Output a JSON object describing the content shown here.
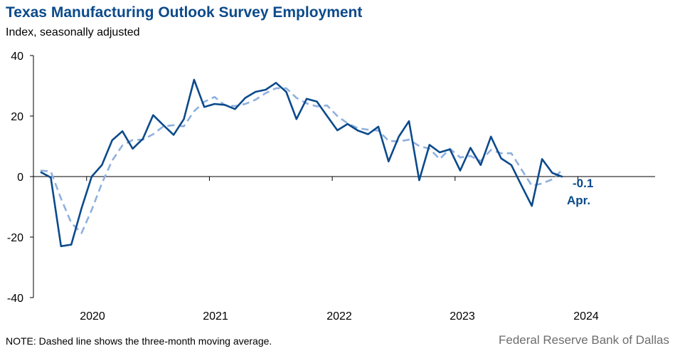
{
  "title": "Texas Manufacturing Outlook Survey Employment",
  "subtitle": "Index, seasonally adjusted",
  "note": "NOTE: Dashed line shows the three-month  moving average.",
  "source": "Federal Reserve Bank of Dallas",
  "colors": {
    "series": "#0b4a8b",
    "moving_average": "#8fb0de",
    "axis": "#000000"
  },
  "chart_data": {
    "type": "line",
    "ylim": [
      -40,
      40
    ],
    "yticks": [
      40,
      20,
      0,
      -20,
      -40
    ],
    "ytick_labels": [
      "40",
      "20",
      "0",
      "-20",
      "-40"
    ],
    "xtick_labels": [
      "2020",
      "2021",
      "2022",
      "2023",
      "2024"
    ],
    "grid": false,
    "start_month": "2019-08",
    "annotations": {
      "value": "-0.1",
      "month": "Apr."
    },
    "series": [
      {
        "style": "solid",
        "values": [
          1.5,
          -0.3,
          -23.0,
          -22.5,
          -10.5,
          0.0,
          3.8,
          12.0,
          15.0,
          9.2,
          12.5,
          20.3,
          17.0,
          13.8,
          19.0,
          32.0,
          23.0,
          24.0,
          23.7,
          22.3,
          26.0,
          28.0,
          28.7,
          31.0,
          28.0,
          19.0,
          25.7,
          24.8,
          20.0,
          15.3,
          17.4,
          15.2,
          14.0,
          16.5,
          5.0,
          13.2,
          18.3,
          -1.2,
          10.5,
          8.0,
          9.0,
          2.0,
          9.5,
          3.8,
          13.2,
          6.0,
          3.8,
          -3.0,
          -9.7,
          5.8,
          1.2,
          -0.1
        ]
      },
      {
        "style": "dashed",
        "values": [
          2.0,
          1.7,
          -7.3,
          -15.3,
          -18.7,
          -11.0,
          -2.2,
          5.3,
          10.3,
          12.1,
          12.2,
          14.0,
          16.6,
          17.0,
          16.6,
          21.6,
          24.7,
          26.3,
          23.6,
          23.3,
          24.0,
          25.4,
          27.6,
          29.2,
          29.2,
          26.0,
          24.2,
          23.2,
          23.5,
          20.0,
          17.6,
          16.0,
          15.5,
          15.2,
          11.8,
          11.6,
          12.2,
          10.1,
          9.2,
          5.8,
          9.2,
          6.3,
          6.8,
          5.1,
          8.8,
          7.7,
          7.7,
          2.3,
          -3.0,
          -2.3,
          -0.9,
          2.3
        ]
      }
    ]
  }
}
